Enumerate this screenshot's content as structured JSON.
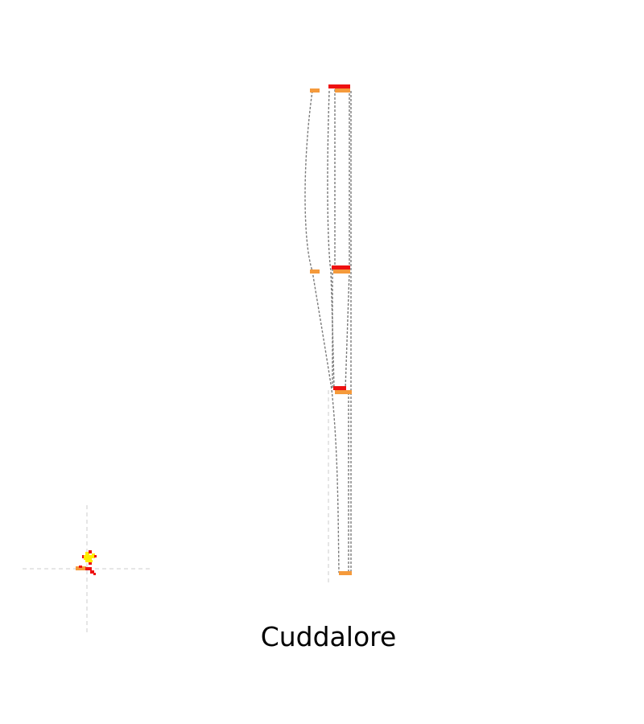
{
  "title": "Cuddalore",
  "colors": {
    "background": "#ffffff",
    "connector": "#7a7a7a",
    "guide": "#d6d6d6",
    "bar_red": "#ee1111",
    "bar_orange": "#f59a3b",
    "marker_yellow": "#ffee00"
  }
}
